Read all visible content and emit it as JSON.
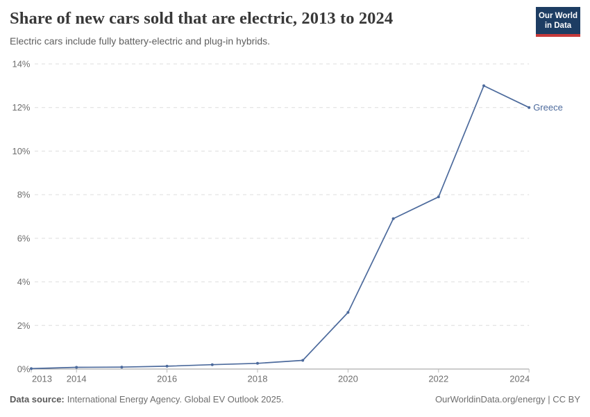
{
  "header": {
    "title": "Share of new cars sold that are electric, 2013 to 2024",
    "subtitle": "Electric cars include fully battery-electric and plug-in hybrids.",
    "logo": {
      "line1": "Our World",
      "line2": "in Data"
    }
  },
  "chart_data": {
    "type": "line",
    "title": "Share of new cars sold that are electric, 2013 to 2024",
    "x": [
      2013,
      2014,
      2015,
      2016,
      2017,
      2018,
      2019,
      2020,
      2021,
      2022,
      2023,
      2024
    ],
    "series": [
      {
        "name": "Greece",
        "values": [
          0.02,
          0.08,
          0.09,
          0.13,
          0.2,
          0.26,
          0.4,
          2.6,
          6.9,
          7.9,
          13.0,
          12.0
        ]
      }
    ],
    "end_label": "Greece",
    "xlim": [
      2013,
      2024
    ],
    "ylim": [
      0,
      14
    ],
    "x_tick_labels": [
      "2013",
      "2014",
      "2016",
      "2018",
      "2020",
      "2022",
      "2024"
    ],
    "x_tick_years": [
      2013,
      2014,
      2016,
      2018,
      2020,
      2022,
      2024
    ],
    "y_ticks": [
      0,
      2,
      4,
      6,
      8,
      10,
      12,
      14
    ],
    "y_tick_suffix": "%",
    "xlabel": "",
    "ylabel": "",
    "grid": "horizontal-dashed",
    "legend_position": "end-of-line",
    "colors": {
      "line": "#4c6a9c",
      "grid": "#dedede",
      "axis": "#9a9a9a",
      "tick": "#b8b8b8",
      "tick_label": "#6e6e6e"
    }
  },
  "footer": {
    "source_label": "Data source:",
    "source_text": "International Energy Agency. Global EV Outlook 2025.",
    "right_text": "OurWorldinData.org/energy | CC BY"
  }
}
